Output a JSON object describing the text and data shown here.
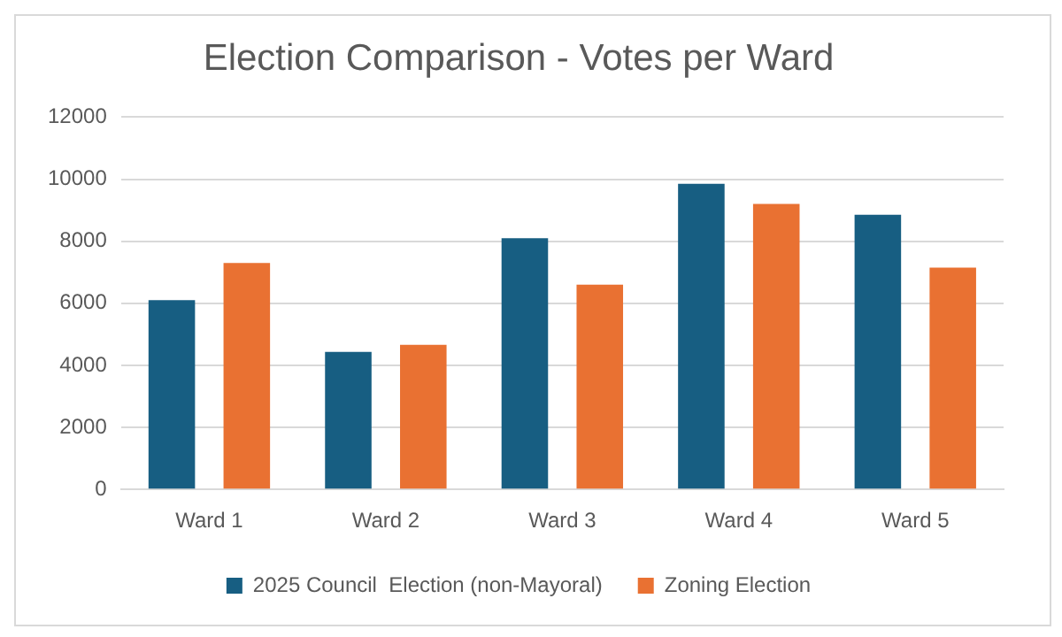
{
  "chart_data": {
    "type": "bar",
    "title": "Election Comparison - Votes per Ward",
    "categories": [
      "Ward 1",
      "Ward 2",
      "Ward 3",
      "Ward 4",
      "Ward 5"
    ],
    "series": [
      {
        "name": "2025 Council  Election (non-Mayoral)",
        "color": "#175e82",
        "values": [
          6100,
          4430,
          8100,
          9850,
          8850
        ]
      },
      {
        "name": "Zoning Election",
        "color": "#e97132",
        "values": [
          7300,
          4660,
          6600,
          9200,
          7150
        ]
      }
    ],
    "ylim": [
      0,
      12000
    ],
    "yticks": [
      0,
      2000,
      4000,
      6000,
      8000,
      10000,
      12000
    ],
    "grid": "y",
    "legend": "bottom"
  }
}
